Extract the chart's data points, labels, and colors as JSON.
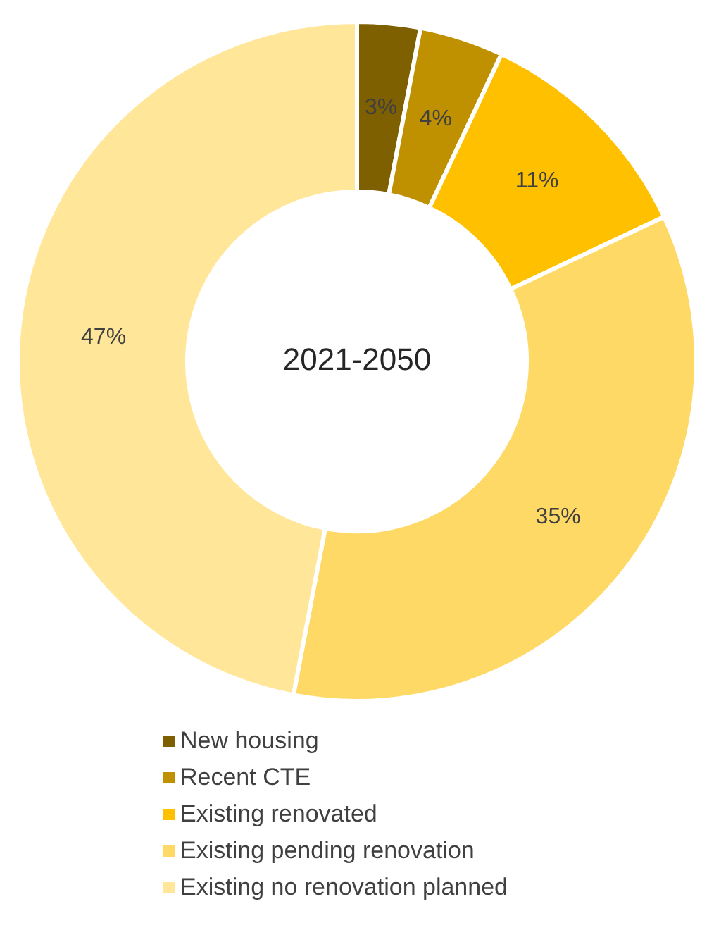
{
  "chart_data": {
    "type": "donut",
    "title": "2021-2050",
    "categories": [
      "New housing",
      "Recent CTE",
      "Existing renovated",
      "Existing pending renovation",
      "Existing no renovation planned"
    ],
    "values": [
      3,
      4,
      11,
      35,
      47
    ],
    "colors": [
      "#7f6000",
      "#bf9000",
      "#ffc000",
      "#ffd966",
      "#ffe699"
    ],
    "value_labels": [
      "3%",
      "4%",
      "11%",
      "35%",
      "47%"
    ],
    "legend": "bottom"
  }
}
